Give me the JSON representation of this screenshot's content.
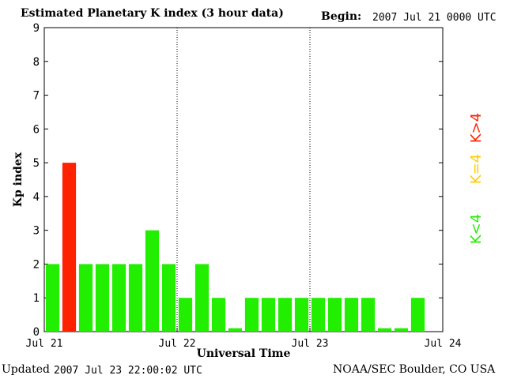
{
  "header": {
    "title": "Estimated Planetary K index (3 hour data)",
    "begin_label": "Begin:",
    "begin_value": "2007 Jul 21 0000 UTC"
  },
  "footer": {
    "updated_label": "Updated",
    "updated_value": "2007 Jul 23 22:00:02 UTC",
    "credit": "NOAA/SEC Boulder, CO USA"
  },
  "legend": [
    {
      "label": "K>4",
      "color": "#ff2200"
    },
    {
      "label": "K=4",
      "color": "#ffcc00"
    },
    {
      "label": "K<4",
      "color": "#22ee00"
    }
  ],
  "chart_data": {
    "type": "bar",
    "xlabel": "Universal Time",
    "ylabel": "Kp index",
    "ylim": [
      0,
      9
    ],
    "yticks": [
      0,
      1,
      2,
      3,
      4,
      5,
      6,
      7,
      8,
      9
    ],
    "xticks": [
      "Jul 21",
      "Jul 22",
      "Jul 23",
      "Jul 24"
    ],
    "interval_hours": 3,
    "values": [
      2,
      5,
      2,
      2,
      2,
      2,
      3,
      2,
      1,
      2,
      1,
      0.1,
      1,
      1,
      1,
      1,
      1,
      1,
      1,
      1,
      0.1,
      0.1,
      1
    ],
    "colors": {
      "below4": "#22ee00",
      "equal4": "#ffcc00",
      "above4": "#ff2200"
    },
    "grid": "vertical dotted at day boundaries"
  }
}
